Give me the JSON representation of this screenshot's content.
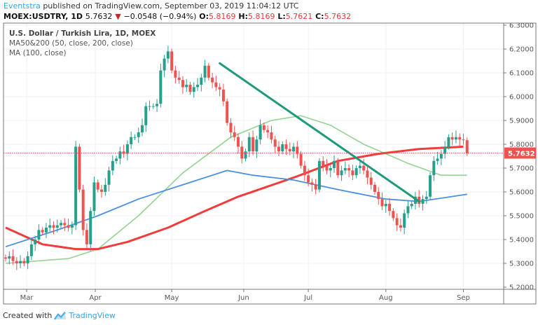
{
  "header": {
    "author": "Eventstra",
    "published_text": "published on TradingView.com, September 03, 2019 11:04:12 UTC",
    "symbol": "MOEX:USDTRY, 1D",
    "last": "5.7632",
    "change": "−0.0548 (−0.94%)",
    "o_label": "O:",
    "o": "5.8169",
    "h_label": "H:",
    "h": "5.8169",
    "l_label": "L:",
    "l": "5.7621",
    "c_label": "C:",
    "c": "5.7632"
  },
  "legend": {
    "title": "U.S. Dollar / Turkish Lira, 1D, MOEX",
    "ma50_200": "MA50&200 (50, close, 200, close)",
    "ma100": "MA (100, close)"
  },
  "footer": {
    "created_with": "Created with",
    "brand": "TradingView"
  },
  "colors": {
    "up": "#26a08c",
    "down": "#ef5350",
    "ma50": "#94d394",
    "ma200": "#f03c3c",
    "ma100": "#4a8fe0",
    "trendline": "#1f9a7c",
    "grid": "#eef2f6"
  },
  "chart_data": {
    "type": "candlestick",
    "title": "U.S. Dollar / Turkish Lira, 1D, MOEX",
    "ylim": [
      5.2,
      6.3
    ],
    "y_ticks": [
      "5.2000",
      "5.3000",
      "5.4000",
      "5.5000",
      "5.6000",
      "5.7000",
      "5.8000",
      "5.9000",
      "6.0000",
      "6.1000",
      "6.2000",
      "6.3000"
    ],
    "x_ticks": [
      {
        "label": "Mar",
        "index": 5.7
      },
      {
        "label": "Apr",
        "index": 24.3
      },
      {
        "label": "May",
        "index": 45
      },
      {
        "label": "Jun",
        "index": 64.5
      },
      {
        "label": "Jul",
        "index": 82
      },
      {
        "label": "Aug",
        "index": 103
      },
      {
        "label": "Sep",
        "index": 124
      }
    ],
    "closes": [
      5.32,
      5.33,
      5.31,
      5.3,
      5.31,
      5.3,
      5.33,
      5.38,
      5.4,
      5.44,
      5.43,
      5.45,
      5.46,
      5.45,
      5.46,
      5.47,
      5.46,
      5.45,
      5.46,
      5.79,
      5.61,
      5.44,
      5.38,
      5.52,
      5.64,
      5.61,
      5.6,
      5.63,
      5.69,
      5.73,
      5.74,
      5.77,
      5.76,
      5.8,
      5.83,
      5.83,
      5.85,
      5.88,
      5.96,
      5.96,
      5.96,
      5.97,
      6.11,
      6.16,
      6.19,
      6.11,
      6.08,
      6.07,
      6.04,
      6.05,
      6.02,
      6.04,
      6.05,
      6.08,
      6.13,
      6.08,
      6.06,
      6.04,
      6.03,
      5.98,
      5.89,
      5.85,
      5.83,
      5.79,
      5.74,
      5.77,
      5.83,
      5.77,
      5.82,
      5.88,
      5.86,
      5.85,
      5.82,
      5.79,
      5.77,
      5.8,
      5.78,
      5.77,
      5.79,
      5.76,
      5.71,
      5.67,
      5.64,
      5.63,
      5.61,
      5.73,
      5.71,
      5.69,
      5.7,
      5.73,
      5.67,
      5.69,
      5.7,
      5.69,
      5.67,
      5.7,
      5.71,
      5.69,
      5.66,
      5.63,
      5.6,
      5.57,
      5.54,
      5.55,
      5.52,
      5.49,
      5.46,
      5.45,
      5.51,
      5.54,
      5.55,
      5.58,
      5.55,
      5.57,
      5.58,
      5.67,
      5.73,
      5.74,
      5.76,
      5.79,
      5.83,
      5.82,
      5.83,
      5.82,
      5.8169,
      5.7632
    ],
    "series": [
      {
        "name": "MA50",
        "color_key": "ma50",
        "points": [
          [
            0,
            5.3
          ],
          [
            17,
            5.32
          ],
          [
            25,
            5.36
          ],
          [
            36,
            5.5
          ],
          [
            48,
            5.68
          ],
          [
            61,
            5.83
          ],
          [
            72,
            5.9
          ],
          [
            80,
            5.92
          ],
          [
            88,
            5.88
          ],
          [
            97,
            5.8
          ],
          [
            109,
            5.72
          ],
          [
            118,
            5.67
          ],
          [
            125,
            5.67
          ]
        ]
      },
      {
        "name": "MA200",
        "color_key": "ma200",
        "points": [
          [
            0,
            5.45
          ],
          [
            10,
            5.38
          ],
          [
            19,
            5.36
          ],
          [
            25,
            5.36
          ],
          [
            33,
            5.39
          ],
          [
            44,
            5.45
          ],
          [
            54,
            5.52
          ],
          [
            63,
            5.58
          ],
          [
            78,
            5.66
          ],
          [
            90,
            5.73
          ],
          [
            101,
            5.76
          ],
          [
            112,
            5.78
          ],
          [
            124,
            5.79
          ]
        ]
      },
      {
        "name": "MA100",
        "color_key": "ma100",
        "points": [
          [
            0,
            5.37
          ],
          [
            14,
            5.44
          ],
          [
            25,
            5.5
          ],
          [
            36,
            5.57
          ],
          [
            50,
            5.64
          ],
          [
            60,
            5.69
          ],
          [
            67,
            5.67
          ],
          [
            78,
            5.65
          ],
          [
            90,
            5.61
          ],
          [
            103,
            5.57
          ],
          [
            112,
            5.56
          ],
          [
            125,
            5.59
          ]
        ]
      }
    ],
    "trendline": [
      [
        58,
        6.14
      ],
      [
        112,
        5.56
      ]
    ],
    "last_price_label": "5.7632"
  }
}
